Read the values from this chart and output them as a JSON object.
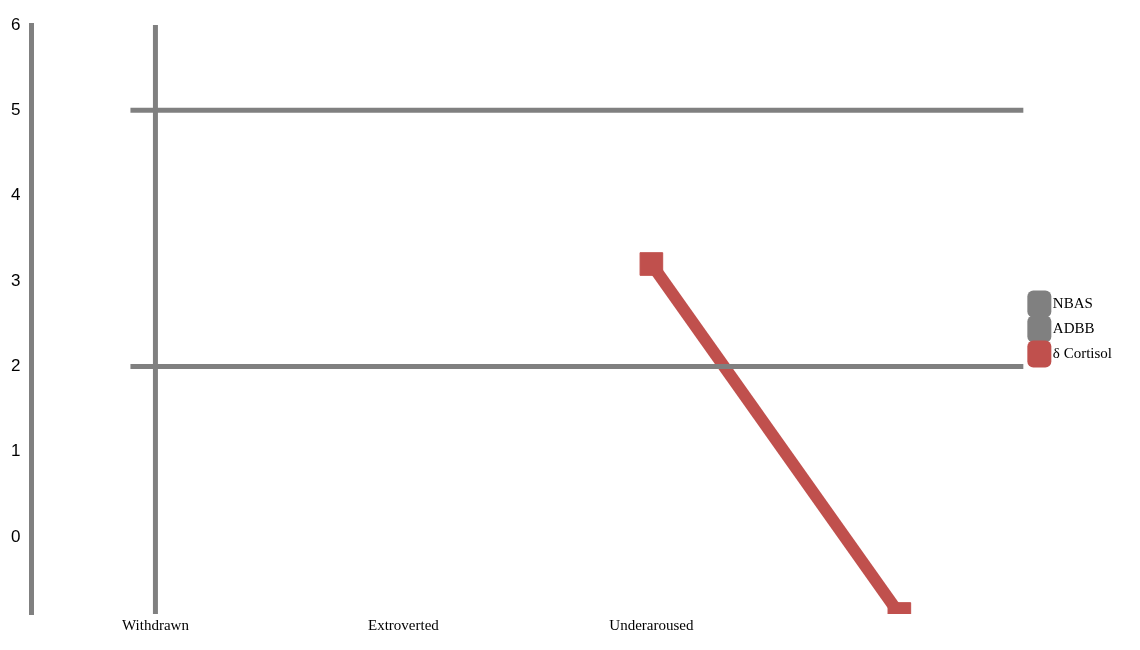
{
  "chart_data": {
    "type": "line",
    "categories": [
      "Withdrawn",
      "Extroverted",
      "Underaroused",
      null
    ],
    "series": [
      {
        "name": "NBAS",
        "color": "#808080",
        "values": [
          null,
          null,
          null,
          null
        ]
      },
      {
        "name": "ADBB",
        "color": "#808080",
        "values": [
          null,
          null,
          null,
          null
        ]
      },
      {
        "name": "δ Cortisol",
        "color": "#c0504d",
        "values": [
          null,
          null,
          3.2,
          -0.9
        ]
      }
    ],
    "ylim": [
      -0.9,
      6
    ],
    "yticks": [
      0,
      1,
      2,
      3,
      4,
      5,
      6
    ],
    "ref_lines": [
      {
        "axis": "y",
        "value": 5,
        "color": "#808080"
      },
      {
        "axis": "y",
        "value": 2,
        "color": "#808080"
      },
      {
        "axis": "x",
        "value": "Withdrawn",
        "color": "#808080"
      }
    ],
    "marker": "square",
    "legend": "right",
    "grid": false
  }
}
